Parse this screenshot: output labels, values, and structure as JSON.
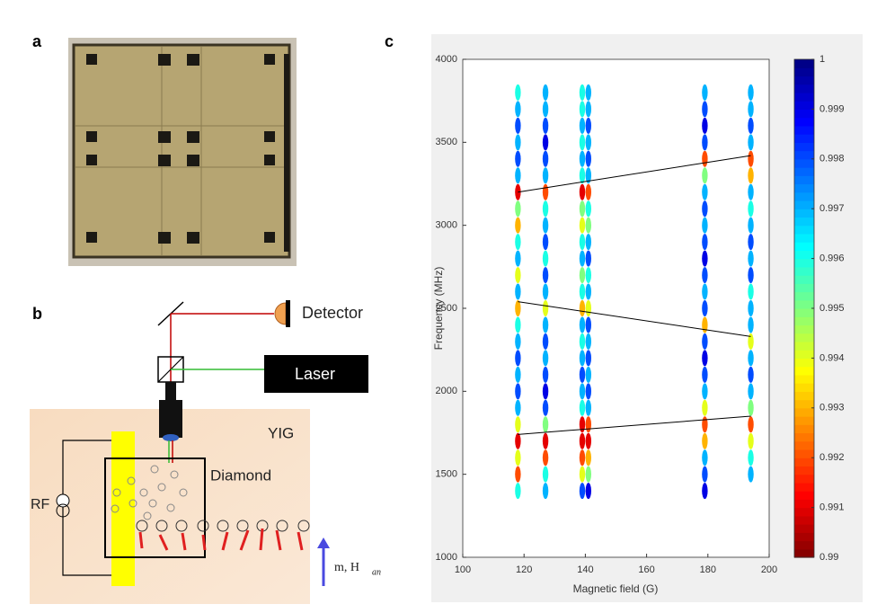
{
  "panels": {
    "a": "a",
    "b": "b",
    "c": "c"
  },
  "diagram": {
    "detector": "Detector",
    "laser": "Laser",
    "yig": "YIG",
    "diamond": "Diamond",
    "rf": "RF",
    "magnet_label": "m, H",
    "magnet_subscript": "an"
  },
  "chart_data": {
    "type": "scatter",
    "xlabel": "Magnetic field (G)",
    "ylabel": "Frequency (MHz)",
    "xlim": [
      100,
      200
    ],
    "xticks": [
      100,
      120,
      140,
      160,
      180,
      200
    ],
    "ylim": [
      1000,
      4000
    ],
    "yticks": [
      1000,
      1500,
      2000,
      2500,
      3000,
      3500,
      4000
    ],
    "colormap": "jet-reversed",
    "clim": [
      0.99,
      1
    ],
    "cticks": [
      0.99,
      0.991,
      0.992,
      0.993,
      0.994,
      0.995,
      0.996,
      0.997,
      0.998,
      0.999,
      1
    ],
    "columns": [
      {
        "x": 118,
        "y": [
          1400,
          1500,
          1600,
          1700,
          1800,
          1900,
          2000,
          2100,
          2200,
          2300,
          2400,
          2500,
          2600,
          2700,
          2800,
          2900,
          3000,
          3100,
          3200,
          3300,
          3400,
          3500,
          3600,
          3700,
          3800
        ],
        "values": [
          0.996,
          0.992,
          0.994,
          0.991,
          0.994,
          0.997,
          0.998,
          0.997,
          0.998,
          0.997,
          0.996,
          0.993,
          0.997,
          0.994,
          0.997,
          0.996,
          0.993,
          0.995,
          0.991,
          0.997,
          0.998,
          0.997,
          0.998,
          0.997,
          0.996
        ]
      },
      {
        "x": 127,
        "y": [
          1400,
          1500,
          1600,
          1700,
          1800,
          1900,
          2000,
          2100,
          2200,
          2300,
          2400,
          2500,
          2600,
          2700,
          2800,
          2900,
          3000,
          3100,
          3200,
          3300,
          3400,
          3500,
          3600,
          3700,
          3800
        ],
        "values": [
          0.997,
          0.996,
          0.992,
          0.991,
          0.995,
          0.998,
          0.999,
          0.998,
          0.997,
          0.998,
          0.997,
          0.994,
          0.997,
          0.998,
          0.996,
          0.998,
          0.997,
          0.996,
          0.992,
          0.997,
          0.998,
          0.999,
          0.998,
          0.997,
          0.997
        ]
      },
      {
        "x": 139,
        "y": [
          1400,
          1500,
          1600,
          1700,
          1800,
          1900,
          2000,
          2100,
          2200,
          2300,
          2400,
          2500,
          2600,
          2700,
          2800,
          2900,
          3000,
          3100,
          3200,
          3300,
          3400,
          3500,
          3600,
          3700,
          3800
        ],
        "values": [
          0.998,
          0.994,
          0.992,
          0.991,
          0.991,
          0.996,
          0.997,
          0.998,
          0.997,
          0.996,
          0.997,
          0.993,
          0.996,
          0.995,
          0.997,
          0.996,
          0.994,
          0.995,
          0.991,
          0.996,
          0.997,
          0.996,
          0.997,
          0.996,
          0.996
        ]
      },
      {
        "x": 141,
        "y": [
          1400,
          1500,
          1600,
          1700,
          1800,
          1900,
          2000,
          2100,
          2200,
          2300,
          2400,
          2500,
          2600,
          2700,
          2800,
          2900,
          3000,
          3100,
          3200,
          3300,
          3400,
          3500,
          3600,
          3700,
          3800
        ],
        "values": [
          0.999,
          0.995,
          0.993,
          0.991,
          0.992,
          0.997,
          0.998,
          0.997,
          0.998,
          0.997,
          0.998,
          0.994,
          0.997,
          0.996,
          0.998,
          0.997,
          0.995,
          0.996,
          0.992,
          0.997,
          0.998,
          0.997,
          0.998,
          0.997,
          0.997
        ]
      },
      {
        "x": 179,
        "y": [
          1400,
          1500,
          1600,
          1700,
          1800,
          1900,
          2000,
          2100,
          2200,
          2300,
          2400,
          2500,
          2600,
          2700,
          2800,
          2900,
          3000,
          3100,
          3200,
          3300,
          3400,
          3500,
          3600,
          3700,
          3800
        ],
        "values": [
          0.999,
          0.998,
          0.997,
          0.993,
          0.992,
          0.994,
          0.997,
          0.998,
          0.999,
          0.998,
          0.993,
          0.998,
          0.997,
          0.998,
          0.999,
          0.998,
          0.997,
          0.998,
          0.997,
          0.995,
          0.992,
          0.998,
          0.999,
          0.998,
          0.997
        ]
      },
      {
        "x": 194,
        "y": [
          1500,
          1600,
          1700,
          1800,
          1900,
          2000,
          2100,
          2200,
          2300,
          2400,
          2500,
          2600,
          2700,
          2800,
          2900,
          3000,
          3100,
          3200,
          3300,
          3400,
          3500,
          3600,
          3700,
          3800
        ],
        "values": [
          0.997,
          0.996,
          0.994,
          0.992,
          0.995,
          0.997,
          0.998,
          0.997,
          0.994,
          0.997,
          0.997,
          0.996,
          0.998,
          0.997,
          0.998,
          0.997,
          0.996,
          0.997,
          0.993,
          0.992,
          0.997,
          0.998,
          0.997,
          0.997
        ]
      }
    ],
    "lines": [
      {
        "color": "#000000",
        "x": [
          118,
          194
        ],
        "y": [
          3200,
          3420
        ]
      },
      {
        "color": "#000000",
        "x": [
          118,
          194
        ],
        "y": [
          2540,
          2330
        ]
      },
      {
        "color": "#000000",
        "x": [
          118,
          194
        ],
        "y": [
          1740,
          1850
        ]
      }
    ]
  }
}
